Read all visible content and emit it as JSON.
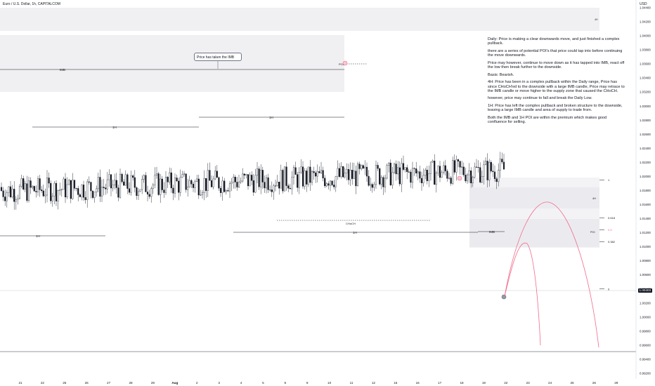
{
  "header": {
    "symbol_title": "Euro / U.S. Dollar, 1h, CAPITALCOM",
    "currency": "USD"
  },
  "last_price_label": "1.00403",
  "callout_text": "Price has taken the IMB",
  "annotations": {
    "imb_top": "IMB",
    "one_h_left": "1H",
    "one_h_mid_a": "1H",
    "one_h_mid_b": "1H",
    "one_h_low": "1H",
    "one_h_bottom_left": "1H",
    "choch": "CHoCH",
    "poi_top": "POI",
    "imb_right": "IMB",
    "poi_right": "POI",
    "tag_4h": "4H",
    "tag_4h_small": "4H"
  },
  "fib_levels": [
    {
      "label": "1",
      "value": 1.0195
    },
    {
      "label": "0.618",
      "value": 1.0141
    },
    {
      "label": "0.5",
      "value": 1.0124
    },
    {
      "label": "0.382",
      "value": 1.0107
    },
    {
      "label": "0",
      "value": 1.004
    }
  ],
  "notes": [
    "Daily: Price is making a clear downwards move, and just finished a complex pullback.",
    "there are a series of potential POI's that price could tap into before continuing the move downwards.",
    "Price may however, continue to move down as it has tapped into IMB, react off the low then break further to the downside.",
    "Basis: Bearish.",
    "4H: Price has been in a complex pullback within the Daily range, Price has since CHoCH'ed to the downside with a large IMB candle, Price may retrace to the IMB candle or move higher to the supply zone that caused the CHoCH.",
    "however, price may continue to fall and break the Daily Low.",
    "1H: Price has left the complex pullback and broken structure to the downside, leaving a large IMB candle and area of supply to trade from.",
    "Both the IMB and 1H POI are within the premium which makes good confluence for selling."
  ],
  "colors": {
    "bull": "#ffffff",
    "bear": "#131722",
    "projection": "#f06b8a",
    "zone": "#f0f0f3",
    "axis_text": "#131722"
  },
  "chart_data": {
    "type": "candlestick",
    "title": "Euro / U.S. Dollar, 1h, CAPITALCOM",
    "ylabel": "USD",
    "ylim": [
      0.992,
      1.046
    ],
    "y_ticks": [
      "1.04400",
      "1.04200",
      "1.04000",
      "1.03800",
      "1.03600",
      "1.03400",
      "1.03200",
      "1.03000",
      "1.02800",
      "1.02600",
      "1.02400",
      "1.02200",
      "1.02000",
      "1.01800",
      "1.01600",
      "1.01400",
      "1.01200",
      "1.01000",
      "1.00800",
      "1.00600",
      "1.00400",
      "1.00200",
      "1.00000",
      "0.99800",
      "0.99600",
      "0.99400",
      "0.99200"
    ],
    "x_ticks": [
      "21",
      "22",
      "25",
      "26",
      "27",
      "28",
      "29",
      "Aug",
      "2",
      "3",
      "4",
      "5",
      "8",
      "9",
      "10",
      "11",
      "12",
      "15",
      "16",
      "17",
      "18",
      "19",
      "22",
      "23",
      "24",
      "25",
      "26",
      "29"
    ],
    "price_path": [
      {
        "x": "21",
        "y": 1.018
      },
      {
        "x": "22",
        "y": 1.021
      },
      {
        "x": "25",
        "y": 1.019
      },
      {
        "x": "26",
        "y": 1.015
      },
      {
        "x": "27",
        "y": 1.011
      },
      {
        "x": "28",
        "y": 1.019
      },
      {
        "x": "29",
        "y": 1.024
      },
      {
        "x": "2",
        "y": 1.027
      },
      {
        "x": "3",
        "y": 1.018
      },
      {
        "x": "4",
        "y": 1.015
      },
      {
        "x": "5",
        "y": 1.025
      },
      {
        "x": "8",
        "y": 1.021
      },
      {
        "x": "9",
        "y": 1.023
      },
      {
        "x": "10",
        "y": 1.036
      },
      {
        "x": "11",
        "y": 1.033
      },
      {
        "x": "12",
        "y": 1.027
      },
      {
        "x": "15",
        "y": 1.017
      },
      {
        "x": "16",
        "y": 1.014
      },
      {
        "x": "17",
        "y": 1.0175
      },
      {
        "x": "18",
        "y": 1.0195
      },
      {
        "x": "19",
        "y": 1.008
      },
      {
        "x": "22",
        "y": 1.004
      }
    ],
    "last_price": 1.00403,
    "grid": false
  }
}
